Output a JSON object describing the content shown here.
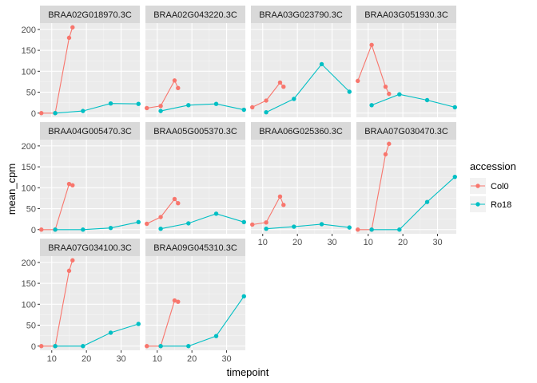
{
  "chart_data": {
    "type": "line",
    "faceted": true,
    "xlabel": "timepoint",
    "ylabel": "mean_cpm",
    "xlim": [
      6.6,
      35.4
    ],
    "ylim": [
      -10,
      215
    ],
    "x_ticks": [
      10,
      20,
      30
    ],
    "y_ticks": [
      0,
      50,
      100,
      150,
      200
    ],
    "grid": true,
    "legend": {
      "title": "accession",
      "position": "right",
      "entries": [
        {
          "name": "Col0",
          "color": "#F8766D"
        },
        {
          "name": "Ro18",
          "color": "#00BFC4"
        }
      ]
    },
    "panels": [
      {
        "title": "BRAA02G018970.3C",
        "series": [
          {
            "name": "Col0",
            "x": [
              7,
              11,
              15,
              16
            ],
            "y": [
              0,
              0,
              180,
              205
            ]
          },
          {
            "name": "Ro18",
            "x": [
              11,
              19,
              27,
              35
            ],
            "y": [
              0,
              5,
              23,
              22
            ]
          }
        ]
      },
      {
        "title": "BRAA02G043220.3C",
        "series": [
          {
            "name": "Col0",
            "x": [
              7,
              11,
              15,
              16
            ],
            "y": [
              12,
              17,
              78,
              60
            ]
          },
          {
            "name": "Ro18",
            "x": [
              11,
              19,
              27,
              35
            ],
            "y": [
              5,
              19,
              22,
              8
            ]
          }
        ]
      },
      {
        "title": "BRAA03G023790.3C",
        "series": [
          {
            "name": "Col0",
            "x": [
              7,
              11,
              15,
              16
            ],
            "y": [
              14,
              30,
              73,
              63
            ]
          },
          {
            "name": "Ro18",
            "x": [
              11,
              19,
              27,
              35
            ],
            "y": [
              2,
              34,
              117,
              51
            ]
          }
        ]
      },
      {
        "title": "BRAA03G051930.3C",
        "series": [
          {
            "name": "Col0",
            "x": [
              7,
              11,
              15,
              16
            ],
            "y": [
              77,
              163,
              63,
              46
            ]
          },
          {
            "name": "Ro18",
            "x": [
              11,
              19,
              27,
              35
            ],
            "y": [
              19,
              45,
              31,
              14
            ]
          }
        ]
      },
      {
        "title": "BRAA04G005470.3C",
        "series": [
          {
            "name": "Col0",
            "x": [
              7,
              11,
              15,
              16
            ],
            "y": [
              0,
              0,
              109,
              106
            ]
          },
          {
            "name": "Ro18",
            "x": [
              11,
              19,
              27,
              35
            ],
            "y": [
              0,
              0,
              4,
              18
            ]
          }
        ]
      },
      {
        "title": "BRAA05G005370.3C",
        "series": [
          {
            "name": "Col0",
            "x": [
              7,
              11,
              15,
              16
            ],
            "y": [
              14,
              30,
              73,
              63
            ]
          },
          {
            "name": "Ro18",
            "x": [
              11,
              19,
              27,
              35
            ],
            "y": [
              2,
              15,
              38,
              18
            ]
          }
        ]
      },
      {
        "title": "BRAA06G025360.3C",
        "series": [
          {
            "name": "Col0",
            "x": [
              7,
              11,
              15,
              16
            ],
            "y": [
              12,
              17,
              79,
              59
            ]
          },
          {
            "name": "Ro18",
            "x": [
              11,
              19,
              27,
              35
            ],
            "y": [
              2,
              7,
              13,
              5
            ]
          }
        ]
      },
      {
        "title": "BRAA07G030470.3C",
        "series": [
          {
            "name": "Col0",
            "x": [
              7,
              11,
              15,
              16
            ],
            "y": [
              0,
              0,
              180,
              205
            ]
          },
          {
            "name": "Ro18",
            "x": [
              11,
              19,
              27,
              35
            ],
            "y": [
              0,
              0,
              66,
              126
            ]
          }
        ]
      },
      {
        "title": "BRAA07G034100.3C",
        "series": [
          {
            "name": "Col0",
            "x": [
              7,
              11,
              15,
              16
            ],
            "y": [
              0,
              0,
              180,
              205
            ]
          },
          {
            "name": "Ro18",
            "x": [
              11,
              19,
              27,
              35
            ],
            "y": [
              0,
              0,
              32,
              53
            ]
          }
        ]
      },
      {
        "title": "BRAA09G045310.3C",
        "series": [
          {
            "name": "Col0",
            "x": [
              7,
              11,
              15,
              16
            ],
            "y": [
              0,
              0,
              109,
              106
            ]
          },
          {
            "name": "Ro18",
            "x": [
              11,
              19,
              27,
              35
            ],
            "y": [
              0,
              0,
              24,
              119
            ]
          }
        ]
      }
    ]
  }
}
